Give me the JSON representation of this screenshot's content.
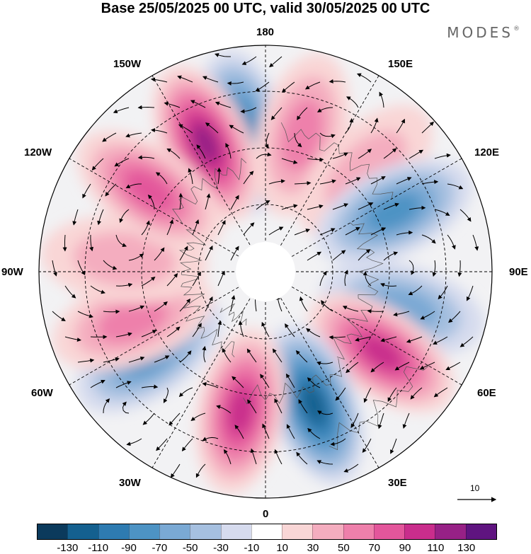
{
  "header": {
    "title": "Base 25/05/2025 00 UTC, valid 30/05/2025 00 UTC",
    "brand": "MODES",
    "brand_mark": "®"
  },
  "map": {
    "projection": "north-polar-stereographic",
    "longitude_labels": {
      "lon_180": "180",
      "lon_150w": "150W",
      "lon_150e": "150E",
      "lon_120w": "120W",
      "lon_120e": "120E",
      "lon_90w": "90W",
      "lon_90e": "90E",
      "lon_60w": "60W",
      "lon_60e": "60E",
      "lon_30w": "30W",
      "lon_30e": "30E",
      "lon_0": "0"
    },
    "anomaly_centers": [
      {
        "sign": "negative",
        "lon_deg": -170,
        "strength": 0.75
      },
      {
        "sign": "positive",
        "lon_deg": -155,
        "strength": 0.95
      },
      {
        "sign": "positive",
        "lon_deg": 165,
        "strength": 0.45
      },
      {
        "sign": "positive",
        "lon_deg": 135,
        "strength": 0.4
      },
      {
        "sign": "negative",
        "lon_deg": 115,
        "strength": 0.7
      },
      {
        "sign": "negative",
        "lon_deg": 75,
        "strength": 0.45
      },
      {
        "sign": "positive",
        "lon_deg": 55,
        "strength": 0.9
      },
      {
        "sign": "negative",
        "lon_deg": 20,
        "strength": 1.0
      },
      {
        "sign": "positive",
        "lon_deg": -10,
        "strength": 0.85
      },
      {
        "sign": "negative",
        "lon_deg": -55,
        "strength": 0.65
      },
      {
        "sign": "positive",
        "lon_deg": -70,
        "strength": 0.55
      },
      {
        "sign": "positive",
        "lon_deg": -95,
        "strength": 0.35
      },
      {
        "sign": "positive",
        "lon_deg": -125,
        "strength": 0.6
      }
    ],
    "reference_vector": "10"
  },
  "colorbar": {
    "tick_labels": [
      "-130",
      "-110",
      "-90",
      "-70",
      "-50",
      "-30",
      "-10",
      "10",
      "30",
      "50",
      "70",
      "90",
      "110",
      "130"
    ],
    "colors": [
      "#0b3a5c",
      "#14608f",
      "#2e7bb1",
      "#4d93c4",
      "#7aa9d4",
      "#a6c0e0",
      "#d6dbee",
      "#ffffff",
      "#f9d6d6",
      "#f4adbf",
      "#ee80ab",
      "#e3569b",
      "#c92d8c",
      "#972186",
      "#5f1480"
    ]
  }
}
